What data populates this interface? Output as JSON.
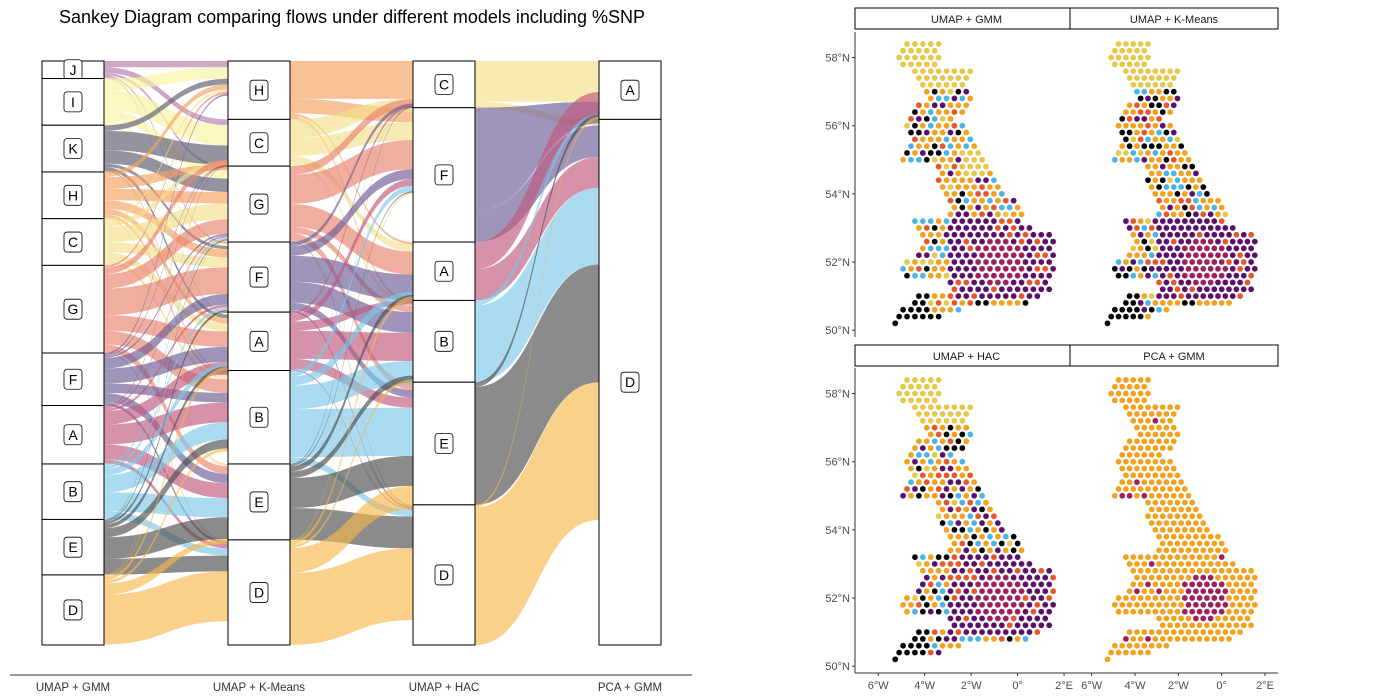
{
  "chart_data": [
    {
      "type": "sankey",
      "title": "Sankey Diagram comparing flows under different models including %SNP",
      "axes": [
        "UMAP + GMM",
        "UMAP + K-Means",
        "UMAP + HAC",
        "PCA + GMM"
      ],
      "stages": [
        {
          "name": "UMAP + GMM",
          "nodes": [
            {
              "label": "J",
              "value": 3
            },
            {
              "label": "I",
              "value": 8
            },
            {
              "label": "K",
              "value": 8
            },
            {
              "label": "H",
              "value": 8
            },
            {
              "label": "C",
              "value": 8
            },
            {
              "label": "G",
              "value": 15
            },
            {
              "label": "F",
              "value": 9
            },
            {
              "label": "A",
              "value": 10
            },
            {
              "label": "B",
              "value": 9.5
            },
            {
              "label": "E",
              "value": 9.5
            },
            {
              "label": "D",
              "value": 12
            }
          ]
        },
        {
          "name": "UMAP + K-Means",
          "nodes": [
            {
              "label": "H",
              "value": 10
            },
            {
              "label": "C",
              "value": 8
            },
            {
              "label": "G",
              "value": 13
            },
            {
              "label": "F",
              "value": 12
            },
            {
              "label": "A",
              "value": 10
            },
            {
              "label": "B",
              "value": 16
            },
            {
              "label": "E",
              "value": 13
            },
            {
              "label": "D",
              "value": 18
            }
          ]
        },
        {
          "name": "UMAP + HAC",
          "nodes": [
            {
              "label": "C",
              "value": 8
            },
            {
              "label": "F",
              "value": 23
            },
            {
              "label": "A",
              "value": 10
            },
            {
              "label": "B",
              "value": 14
            },
            {
              "label": "E",
              "value": 21
            },
            {
              "label": "D",
              "value": 24
            }
          ]
        },
        {
          "name": "PCA + GMM",
          "nodes": [
            {
              "label": "A",
              "value": 10
            },
            {
              "label": "D",
              "value": 90
            }
          ]
        }
      ],
      "flow_colors": {
        "J": "#b57aa6",
        "I": "#f8f2a0",
        "K": "#5a5a6e",
        "H": "#f4a261",
        "C": "#f3e08a",
        "G": "#e8826e",
        "F": "#6b5b95",
        "A": "#c0587e",
        "B": "#7dc8e8",
        "E": "#4d4d4d",
        "D": "#f6b94d"
      }
    },
    {
      "type": "map",
      "panels": [
        "UMAP + GMM",
        "UMAP + K-Means",
        "UMAP + HAC",
        "PCA + GMM"
      ],
      "y_ticks": [
        "50°N",
        "52°N",
        "54°N",
        "56°N",
        "58°N"
      ],
      "x_ticks": [
        "6°W",
        "4°W",
        "2°W",
        "0°",
        "2°E"
      ],
      "cluster_colors": [
        "#f4a21d",
        "#000000",
        "#4bb4e6",
        "#e8572a",
        "#5b0f6b",
        "#9e1f5c",
        "#e8c84a"
      ]
    }
  ]
}
